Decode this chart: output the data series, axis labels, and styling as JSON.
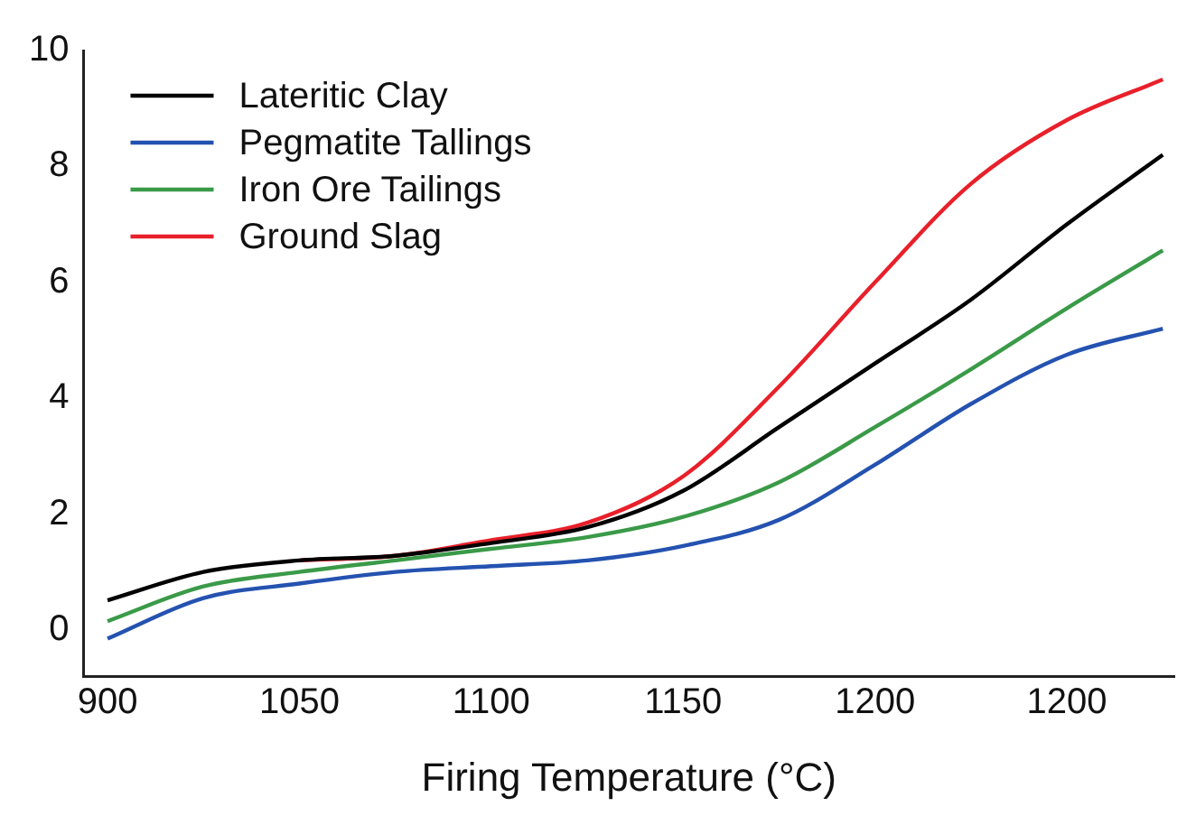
{
  "chart_data": {
    "type": "line",
    "xlabel": "Firing Temperature (°C)",
    "categories": [
      "900",
      null,
      "1050",
      null,
      "1100",
      null,
      "1150",
      null,
      "1200",
      null,
      "1200",
      null
    ],
    "ylim": [
      -0.8,
      10
    ],
    "yticks": [
      0,
      2,
      4,
      6,
      8,
      10
    ],
    "grid": false,
    "legend": "top left",
    "marker": "none",
    "line_style": "solid",
    "series": [
      {
        "name": "Lateritic Clay",
        "color": "#000000",
        "values": [
          0.51,
          1.0,
          1.2,
          1.28,
          1.5,
          1.77,
          2.4,
          3.5,
          4.6,
          5.7,
          7.0,
          8.2
        ]
      },
      {
        "name": "Pegmatite Tallings",
        "color": "#2452b0",
        "values": [
          -0.15,
          0.55,
          0.8,
          1.0,
          1.1,
          1.2,
          1.45,
          1.9,
          2.85,
          3.9,
          4.75,
          5.2
        ]
      },
      {
        "name": "Iron Ore Tailings",
        "color": "#3a9a48",
        "values": [
          0.15,
          0.75,
          1.0,
          1.2,
          1.4,
          1.6,
          1.95,
          2.55,
          3.5,
          4.5,
          5.55,
          6.55
        ]
      },
      {
        "name": "Ground Slag",
        "color": "#e8202a",
        "values": [
          null,
          null,
          1.2,
          1.28,
          1.55,
          1.85,
          2.65,
          4.2,
          6.0,
          7.7,
          8.8,
          9.5
        ]
      }
    ]
  }
}
